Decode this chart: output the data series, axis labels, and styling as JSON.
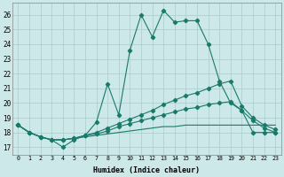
{
  "xlabel": "Humidex (Indice chaleur)",
  "background_color": "#cce8e8",
  "grid_color": "#aacccc",
  "line_color": "#1a7a6a",
  "xlim": [
    -0.5,
    23.5
  ],
  "ylim": [
    16.5,
    26.8
  ],
  "yticks": [
    17,
    18,
    19,
    20,
    21,
    22,
    23,
    24,
    25,
    26
  ],
  "xticks": [
    0,
    1,
    2,
    3,
    4,
    5,
    6,
    7,
    8,
    9,
    10,
    11,
    12,
    13,
    14,
    15,
    16,
    17,
    18,
    19,
    20,
    21,
    22,
    23
  ],
  "series_main": [
    18.5,
    18.0,
    17.7,
    17.5,
    17.0,
    17.5,
    17.8,
    18.7,
    21.3,
    19.2,
    23.6,
    26.0,
    24.5,
    26.3,
    25.5,
    25.6,
    25.6,
    24.0,
    21.5,
    20.0,
    19.5,
    18.0,
    18.0,
    18.0
  ],
  "series_upper": [
    18.5,
    18.0,
    17.7,
    17.5,
    17.5,
    17.6,
    17.8,
    18.0,
    18.3,
    18.6,
    18.9,
    19.2,
    19.5,
    19.9,
    20.2,
    20.5,
    20.7,
    21.0,
    21.3,
    21.5,
    19.8,
    19.0,
    18.5,
    18.2
  ],
  "series_mid": [
    18.5,
    18.0,
    17.7,
    17.5,
    17.5,
    17.6,
    17.8,
    17.9,
    18.1,
    18.4,
    18.6,
    18.8,
    19.0,
    19.2,
    19.4,
    19.6,
    19.7,
    19.9,
    20.0,
    20.1,
    19.5,
    18.8,
    18.3,
    18.0
  ],
  "series_flat": [
    18.5,
    18.0,
    17.7,
    17.5,
    17.5,
    17.6,
    17.7,
    17.8,
    17.9,
    18.0,
    18.1,
    18.2,
    18.3,
    18.4,
    18.4,
    18.5,
    18.5,
    18.5,
    18.5,
    18.5,
    18.5,
    18.5,
    18.5,
    18.5
  ]
}
